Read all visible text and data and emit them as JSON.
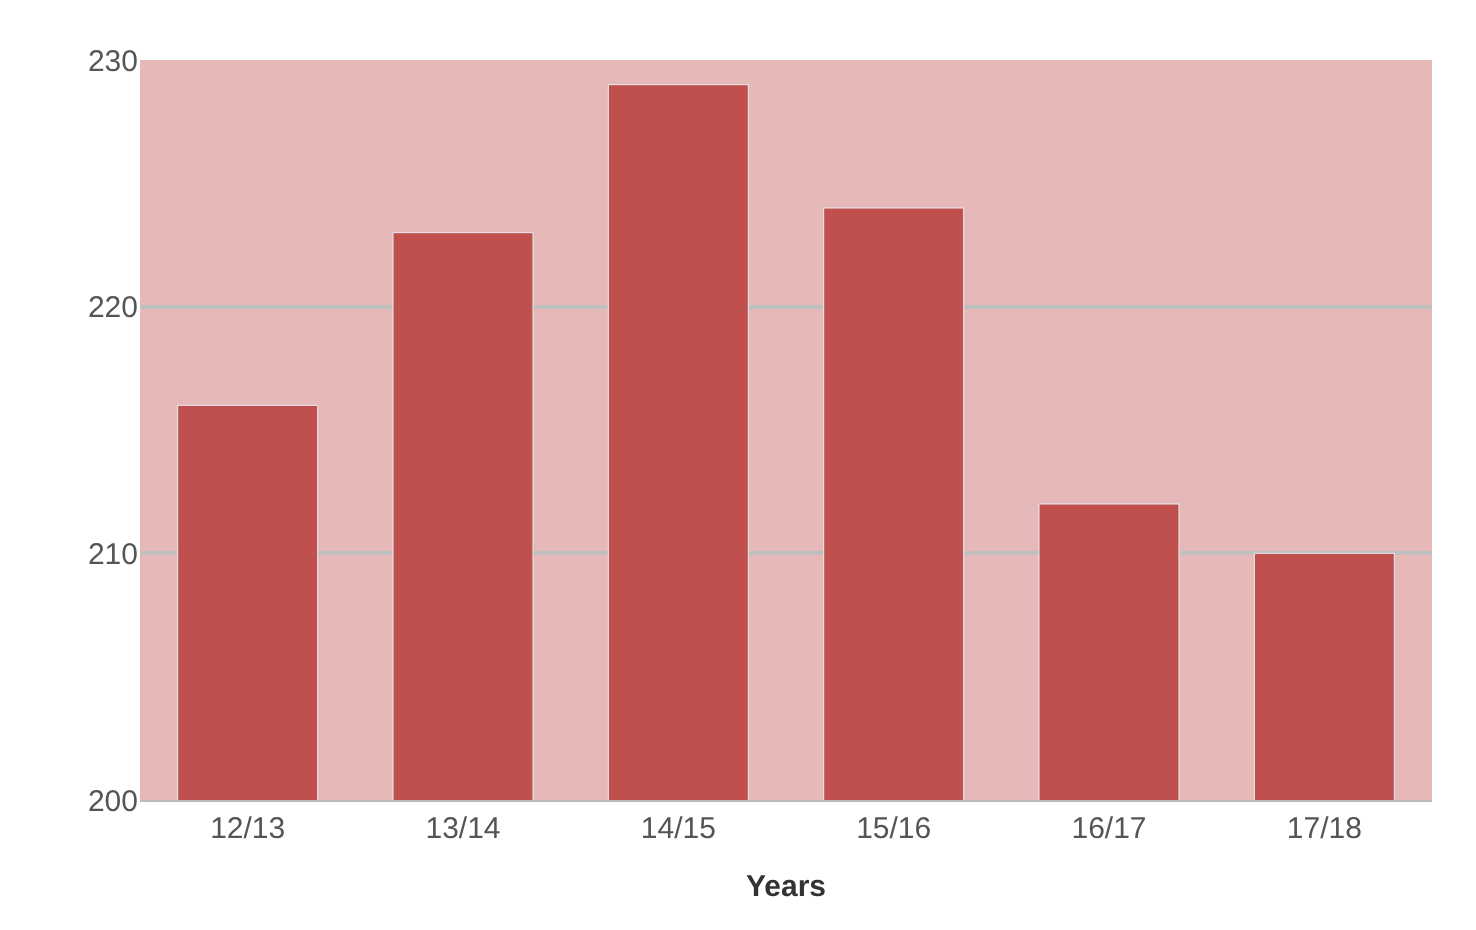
{
  "chart_data": {
    "type": "bar",
    "xlabel": "Years",
    "categories": [
      "12/13",
      "13/14",
      "14/15",
      "15/16",
      "16/17",
      "17/18"
    ],
    "values": [
      216,
      223,
      229,
      224,
      212,
      210
    ],
    "color": "#c0504d",
    "ylim": [
      200,
      230
    ],
    "yticks": [
      200,
      210,
      220,
      230
    ],
    "grid": "y",
    "legend": false
  }
}
